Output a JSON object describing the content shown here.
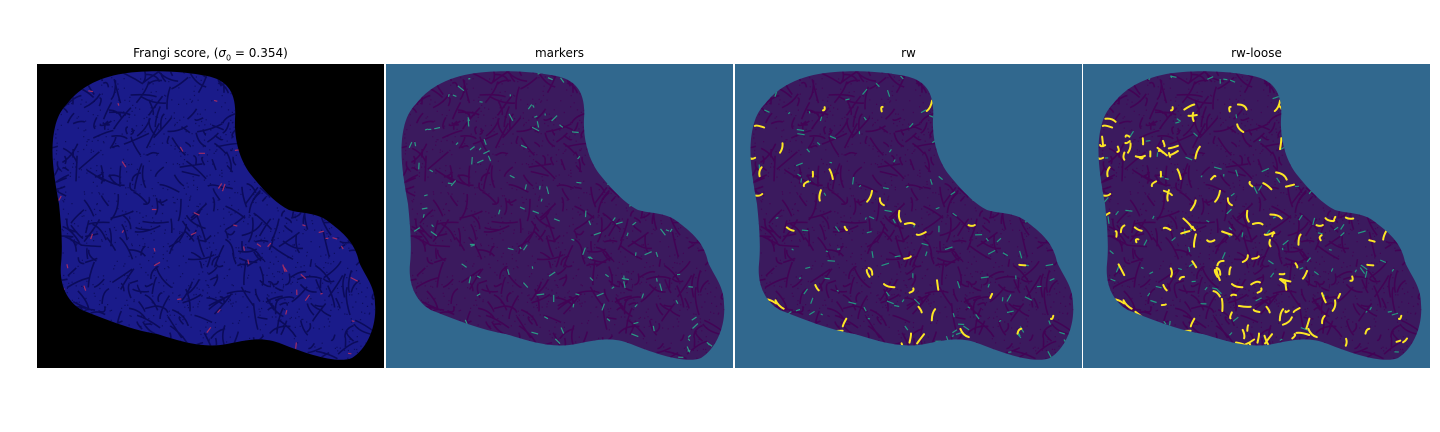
{
  "panels": [
    {
      "id": "frangi",
      "title_prefix": "Frangi score, (",
      "title_symbol": "σ",
      "title_subscript": "0",
      "title_suffix": " = 0.354)",
      "background": "#000000",
      "tissue_color": "#1a1b8a",
      "vessel_color": "#0a0a55",
      "highlight_color": "#b03060",
      "highlight_level": 0.04
    },
    {
      "id": "markers",
      "title": "markers",
      "background": "#31688e",
      "tissue_color": "#3b1a5e",
      "vessel_color": "#440154",
      "highlight_color": "#2aa88a",
      "highlight_level": 0.12
    },
    {
      "id": "rw",
      "title": "rw",
      "background": "#31688e",
      "tissue_color": "#3b1a5e",
      "vessel_color": "#440154",
      "highlight_color": "#21a685",
      "accent_color": "#fde725",
      "highlight_level": 0.1,
      "accent_level": 0.04
    },
    {
      "id": "rwloose",
      "title": "rw-loose",
      "background": "#31688e",
      "tissue_color": "#3b1a5e",
      "vessel_color": "#440154",
      "highlight_color": "#21a685",
      "accent_color": "#fde725",
      "highlight_level": 0.1,
      "accent_level": 0.12
    }
  ]
}
